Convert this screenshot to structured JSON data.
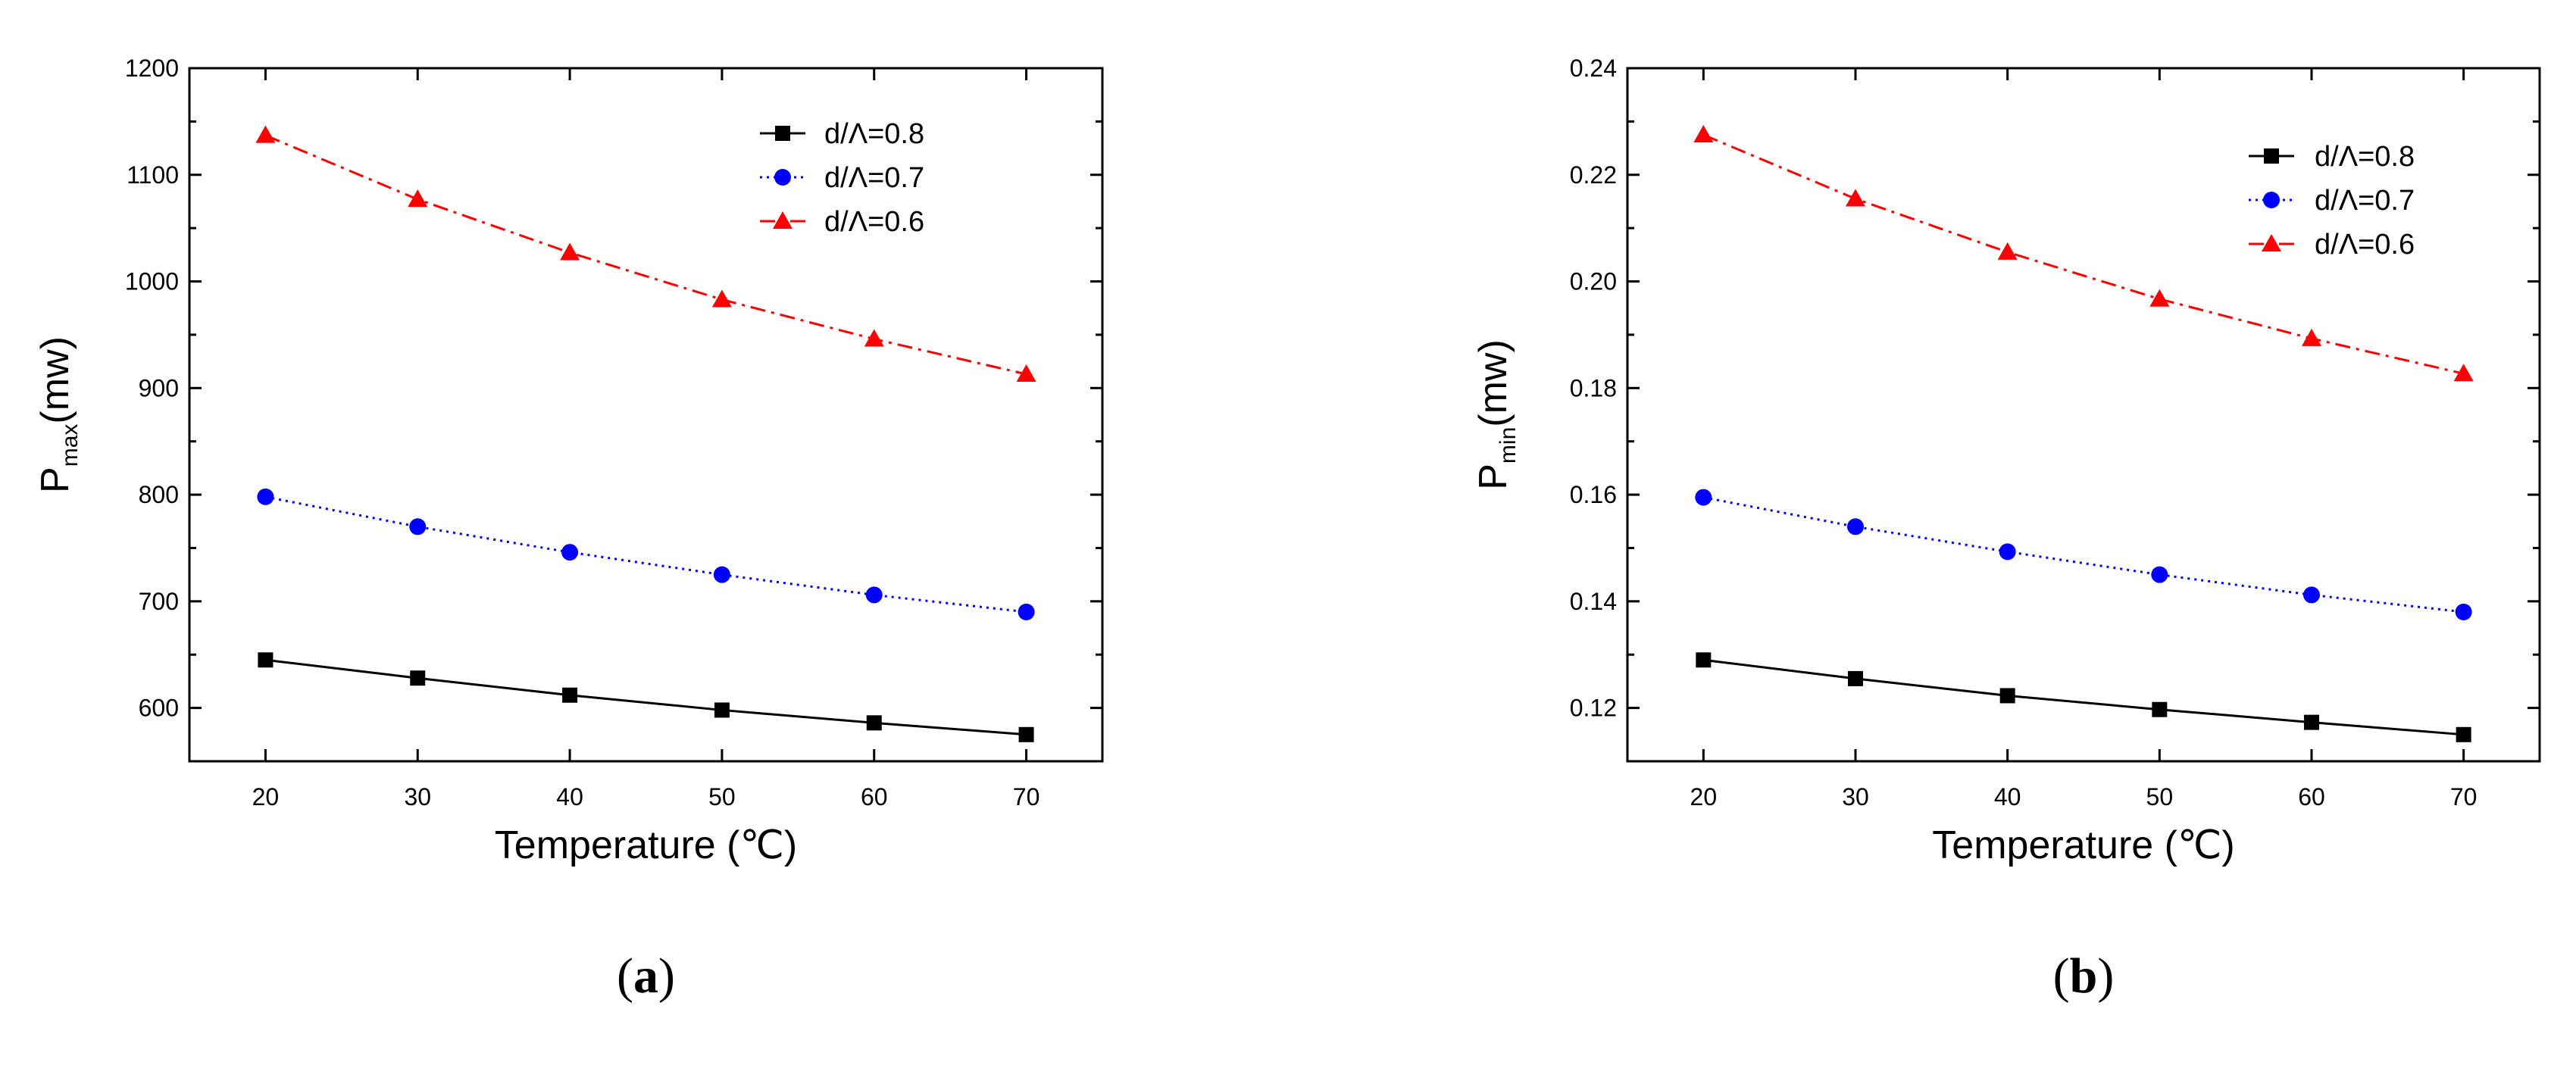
{
  "chart_data": [
    {
      "type": "line",
      "panel_label": "(a)",
      "panel_letter": "a",
      "ylabel_main": "P",
      "ylabel_sub": "max",
      "ylabel_unit": "(mw)",
      "xlabel": "Temperature (℃)",
      "x": [
        20,
        30,
        40,
        50,
        60,
        70
      ],
      "x_ticks": [
        "20",
        "30",
        "40",
        "50",
        "60",
        "70"
      ],
      "xlim": [
        15,
        75
      ],
      "ylim": [
        550,
        1200
      ],
      "y_ticks": [
        "600",
        "700",
        "800",
        "900",
        "1000",
        "1100",
        "1200"
      ],
      "legend_position": "top-right",
      "series": [
        {
          "name": "d/Λ=0.8",
          "color": "#000000",
          "marker": "square",
          "dash": "solid",
          "values": [
            645,
            628,
            612,
            598,
            586,
            575
          ]
        },
        {
          "name": "d/Λ=0.7",
          "color": "#0000ff",
          "marker": "circle",
          "dash": "dotted",
          "values": [
            798,
            770,
            746,
            725,
            706,
            690
          ]
        },
        {
          "name": "d/Λ=0.6",
          "color": "#ff0000",
          "marker": "triangle",
          "dash": "dashdot",
          "values": [
            1137,
            1077,
            1027,
            983,
            946,
            913
          ]
        }
      ]
    },
    {
      "type": "line",
      "panel_label": "(b)",
      "panel_letter": "b",
      "ylabel_main": "P",
      "ylabel_sub": "min",
      "ylabel_unit": "(mw)",
      "xlabel": "Temperature (℃)",
      "x": [
        20,
        30,
        40,
        50,
        60,
        70
      ],
      "x_ticks": [
        "20",
        "30",
        "40",
        "50",
        "60",
        "70"
      ],
      "xlim": [
        15,
        75
      ],
      "ylim": [
        0.11,
        0.24
      ],
      "y_ticks": [
        "0.12",
        "0.14",
        "0.16",
        "0.18",
        "0.20",
        "0.22",
        "0.24"
      ],
      "legend_position": "top-right",
      "series": [
        {
          "name": "d/Λ=0.8",
          "color": "#000000",
          "marker": "square",
          "dash": "solid",
          "values": [
            0.129,
            0.1255,
            0.1223,
            0.1197,
            0.1173,
            0.115
          ]
        },
        {
          "name": "d/Λ=0.7",
          "color": "#0000ff",
          "marker": "circle",
          "dash": "dotted",
          "values": [
            0.1595,
            0.154,
            0.1493,
            0.145,
            0.1412,
            0.138
          ]
        },
        {
          "name": "d/Λ=0.6",
          "color": "#ff0000",
          "marker": "triangle",
          "dash": "dashdot",
          "values": [
            0.2275,
            0.2155,
            0.2055,
            0.1967,
            0.1893,
            0.1827
          ]
        }
      ]
    }
  ]
}
